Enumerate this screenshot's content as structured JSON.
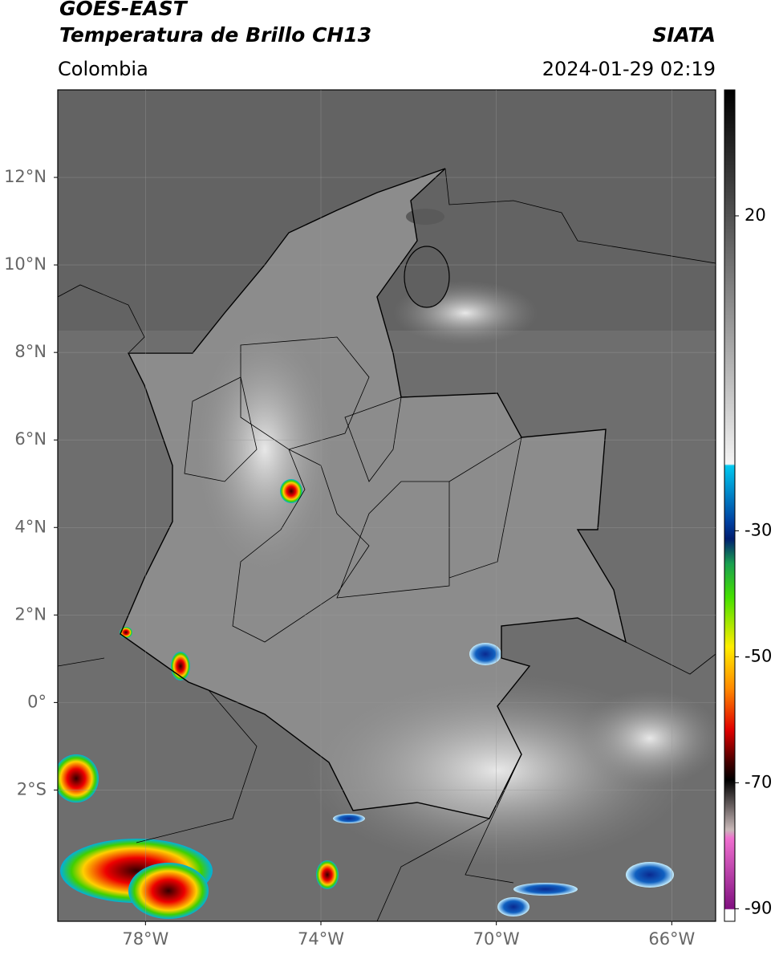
{
  "header": {
    "title": "GOES-EAST",
    "subtitle": "Temperatura de Brillo CH13",
    "source": "SIATA",
    "region": "Colombia",
    "datetime": "2024-01-29 02:19"
  },
  "map": {
    "xlim": [
      -80,
      -65
    ],
    "ylim": [
      -5,
      14
    ],
    "xticks": [
      {
        "value": -78,
        "label": "78°W"
      },
      {
        "value": -74,
        "label": "74°W"
      },
      {
        "value": -70,
        "label": "70°W"
      },
      {
        "value": -66,
        "label": "66°W"
      }
    ],
    "yticks": [
      {
        "value": 12,
        "label": "12°N"
      },
      {
        "value": 10,
        "label": "10°N"
      },
      {
        "value": 8,
        "label": "8°N"
      },
      {
        "value": 6,
        "label": "6°N"
      },
      {
        "value": 4,
        "label": "4°N"
      },
      {
        "value": 2,
        "label": "2°N"
      },
      {
        "value": 0,
        "label": "0°"
      },
      {
        "value": -2,
        "label": "2°S"
      }
    ]
  },
  "colorbar": {
    "lim": [
      -92,
      40
    ],
    "ticks": [
      20,
      -30,
      -50,
      -70,
      -90
    ]
  }
}
